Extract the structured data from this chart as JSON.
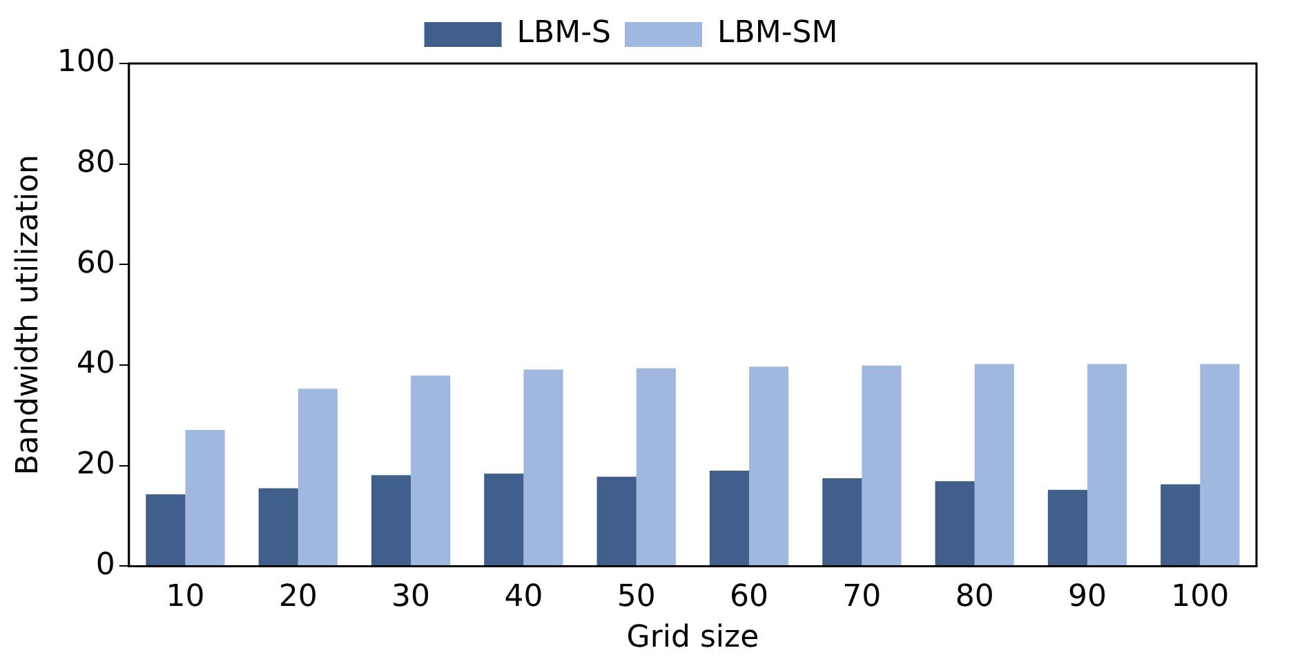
{
  "chart_data": {
    "type": "bar",
    "xlabel": "Grid size",
    "ylabel": "Bandwidth utilization",
    "categories": [
      "10",
      "20",
      "30",
      "40",
      "50",
      "60",
      "70",
      "80",
      "90",
      "100"
    ],
    "series": [
      {
        "name": "LBM-S",
        "color": "#3f5f8a",
        "values": [
          14.3,
          15.5,
          18.1,
          18.4,
          17.8,
          19.0,
          17.5,
          16.9,
          15.2,
          16.3
        ]
      },
      {
        "name": "LBM-SM",
        "color": "#a0b8e0",
        "values": [
          27.1,
          35.3,
          37.9,
          39.1,
          39.4,
          39.7,
          39.9,
          40.2,
          40.2,
          40.2
        ]
      }
    ],
    "ylim": [
      0,
      100
    ],
    "yticks": [
      0,
      20,
      40,
      60,
      80,
      100
    ],
    "grid": false,
    "legend": "top"
  }
}
